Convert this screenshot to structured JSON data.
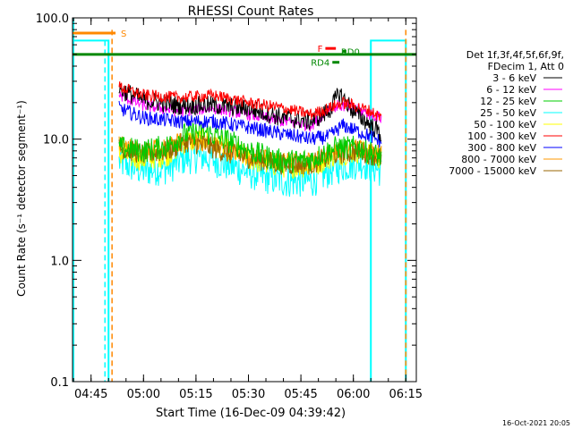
{
  "chart_data": {
    "type": "line",
    "title": "RHESSI Count Rates",
    "xlabel": "Start Time (16-Dec-09 04:39:42)",
    "ylabel": "Count Rate (s⁻¹ detector segment⁻¹)",
    "yscale": "log",
    "ylim": [
      0.1,
      100
    ],
    "xlim": [
      "04:39:42",
      "06:18:00"
    ],
    "x_ticks": [
      "04:45",
      "05:00",
      "05:15",
      "05:30",
      "05:45",
      "06:00",
      "06:15"
    ],
    "y_ticks": [
      "0.1",
      "1.0",
      "10.0",
      "100.0"
    ],
    "grid": false,
    "legend_position": "right",
    "legend_header": [
      "Det 1f,3f,4f,5f,6f,9f,",
      "FDecim 1, Att 0"
    ],
    "series": [
      {
        "name": "3 - 6 keV",
        "color": "#000000",
        "x": [
          "04:53",
          "05:00",
          "05:10",
          "05:20",
          "05:30",
          "05:40",
          "05:48",
          "05:53",
          "05:56",
          "06:00",
          "06:05",
          "06:08"
        ],
        "values": [
          26,
          21,
          19,
          19,
          18,
          15,
          14,
          17,
          24,
          17,
          13,
          11
        ]
      },
      {
        "name": "6 - 12 keV",
        "color": "#ff00ff",
        "x": [
          "04:53",
          "05:00",
          "05:10",
          "05:20",
          "05:30",
          "05:40",
          "05:48",
          "05:53",
          "05:56",
          "06:00",
          "06:05",
          "06:08"
        ],
        "values": [
          23,
          19,
          17,
          18,
          16,
          14,
          13,
          18,
          19,
          18,
          16,
          15
        ]
      },
      {
        "name": "12 - 25 keV",
        "color": "#00cc00",
        "x": [
          "04:53",
          "05:00",
          "05:07",
          "05:12",
          "05:17",
          "05:25",
          "05:33",
          "05:40",
          "05:48",
          "05:55",
          "06:02",
          "06:08"
        ],
        "values": [
          8.5,
          8.0,
          8.8,
          11.0,
          11.5,
          9.5,
          7.5,
          6.5,
          6.8,
          8.5,
          8.5,
          7.0
        ]
      },
      {
        "name": "25 - 50 keV",
        "color": "#00ffff",
        "x": [
          "04:53",
          "05:00",
          "05:07",
          "05:12",
          "05:17",
          "05:25",
          "05:33",
          "05:40",
          "05:48",
          "05:55",
          "06:02",
          "06:08"
        ],
        "values": [
          6.5,
          5.5,
          5.8,
          7.0,
          7.2,
          6.0,
          5.0,
          4.5,
          4.5,
          5.8,
          6.5,
          5.5
        ]
      },
      {
        "name": "50 - 100 keV",
        "color": "#ffff00",
        "x": [
          "04:53",
          "05:00",
          "05:07",
          "05:12",
          "05:17",
          "05:25",
          "05:33",
          "05:40",
          "05:48",
          "05:55",
          "06:02",
          "06:08"
        ],
        "values": [
          7.5,
          6.8,
          7.5,
          9.5,
          10.0,
          8.0,
          6.5,
          6.0,
          6.0,
          7.5,
          8.0,
          7.0
        ]
      },
      {
        "name": "100 - 300 keV",
        "color": "#ff0000",
        "x": [
          "04:53",
          "05:00",
          "05:10",
          "05:20",
          "05:30",
          "05:40",
          "05:48",
          "05:53",
          "05:57",
          "06:00",
          "06:05",
          "06:08"
        ],
        "values": [
          27,
          23,
          22,
          23,
          20,
          18,
          16,
          18,
          20,
          19,
          17,
          15
        ]
      },
      {
        "name": "300 - 800 keV",
        "color": "#0000ff",
        "x": [
          "04:53",
          "05:00",
          "05:10",
          "05:20",
          "05:30",
          "05:40",
          "05:48",
          "05:53",
          "05:57",
          "06:00",
          "06:05",
          "06:08"
        ],
        "values": [
          18,
          15,
          14,
          14,
          12.5,
          11,
          10,
          10.5,
          13,
          12,
          10.5,
          9.5
        ]
      },
      {
        "name": "800 - 7000 keV",
        "color": "#ff9900",
        "x": [
          "04:53",
          "05:00",
          "05:07",
          "05:12",
          "05:17",
          "05:25",
          "05:33",
          "05:40",
          "05:48",
          "05:55",
          "06:02",
          "06:08"
        ],
        "values": [
          9.0,
          8.0,
          8.5,
          10.0,
          9.5,
          8.0,
          7.0,
          6.5,
          6.5,
          8.0,
          8.5,
          7.5
        ]
      },
      {
        "name": "7000 - 15000 keV",
        "color": "#996600",
        "x": [
          "04:53",
          "05:00",
          "05:07",
          "05:12",
          "05:17",
          "05:25",
          "05:33",
          "05:40",
          "05:48",
          "05:55",
          "06:02",
          "06:08"
        ],
        "values": [
          8.5,
          7.5,
          8.0,
          9.5,
          9.0,
          7.5,
          6.8,
          6.2,
          6.2,
          7.5,
          8.0,
          7.0
        ]
      }
    ],
    "flags": [
      {
        "label": "S",
        "color": "#ff8800",
        "start": "04:39:42",
        "end": "04:52",
        "value": 75
      },
      {
        "label": "F",
        "color": "#ff0000",
        "start": "05:52",
        "end": "05:55",
        "value": 56
      },
      {
        "label": "RD0",
        "color": "#008800",
        "start": "05:57",
        "end": "05:58",
        "value": 53
      },
      {
        "label": "RD4",
        "color": "#008800",
        "start": "05:54",
        "end": "05:56",
        "value": 43
      }
    ],
    "attenuator_level": {
      "color": "#008800",
      "value": 50
    },
    "background_markers": {
      "cyan_level": 65,
      "orange_vlines": [
        "04:51",
        "06:15"
      ],
      "cyan_vlines": [
        "04:40",
        "04:50",
        "06:05",
        "06:15"
      ]
    },
    "timestamp": "16-Oct-2021 20:05"
  }
}
